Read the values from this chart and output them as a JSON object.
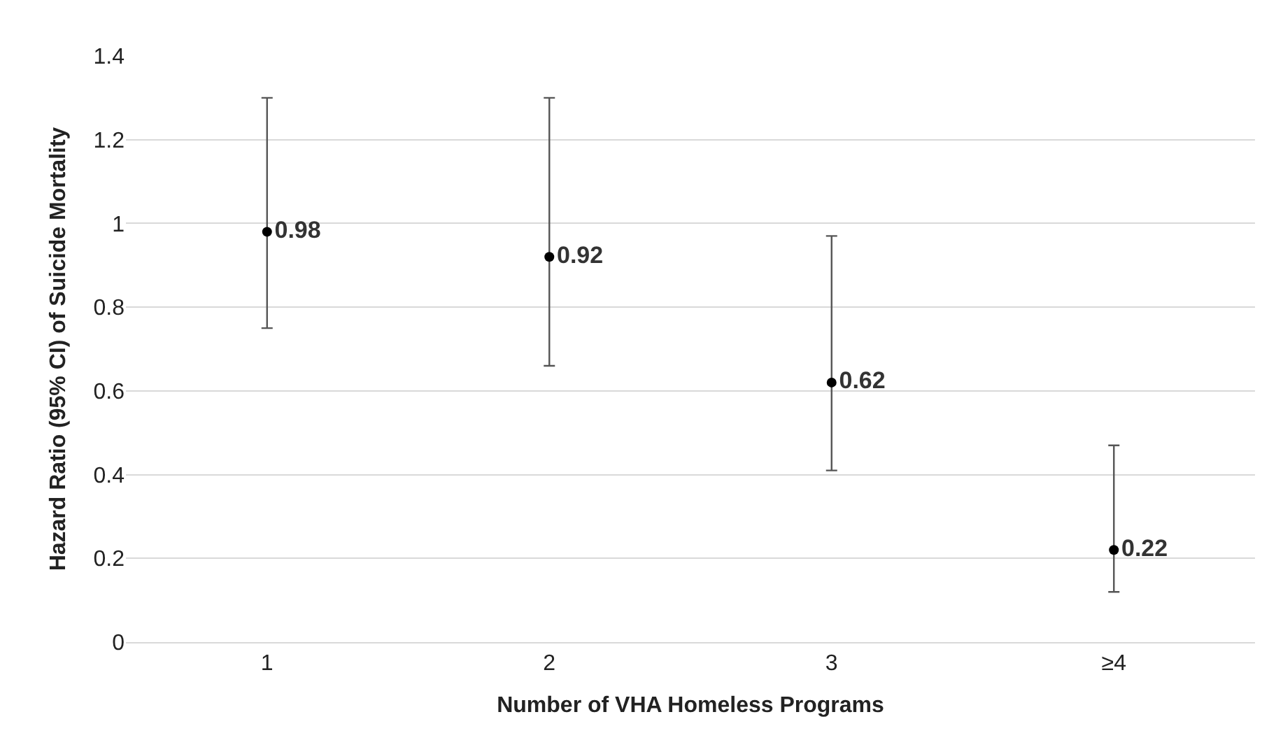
{
  "chart_data": {
    "type": "scatter",
    "xlabel": "Number of VHA Homeless Programs",
    "ylabel": "Hazard Ratio (95% CI) of Suicide Mortality",
    "categories": [
      "1",
      "2",
      "3",
      "≥4"
    ],
    "series": [
      {
        "color": "#000000",
        "values": [
          0.98,
          0.92,
          0.62,
          0.22
        ],
        "errors": [
          [
            0.75,
            1.3
          ],
          [
            0.66,
            1.3
          ],
          [
            0.41,
            0.97
          ],
          [
            0.12,
            0.47
          ]
        ]
      }
    ],
    "ylim": [
      0,
      1.4
    ],
    "yticks": [
      0,
      0.2,
      0.4,
      0.6,
      0.8,
      1,
      1.2,
      1.4
    ],
    "grid": "y",
    "marker": "circle",
    "data_labels": true,
    "legend": false
  }
}
